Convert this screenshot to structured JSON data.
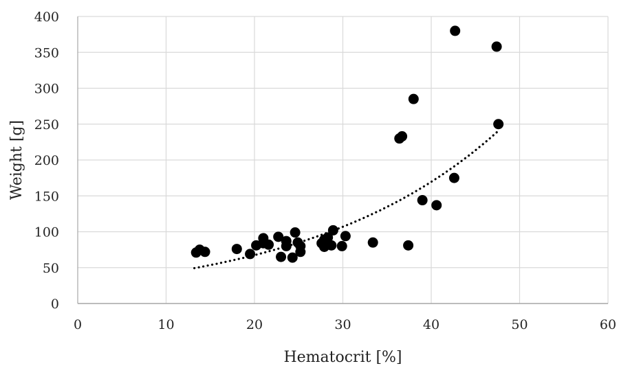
{
  "chart_data": {
    "type": "scatter",
    "title": "",
    "xlabel": "Hematocrit [%]",
    "ylabel": "Weight [g]",
    "xlim": [
      0,
      60
    ],
    "ylim": [
      0,
      400
    ],
    "x_ticks": [
      0,
      10,
      20,
      30,
      40,
      50,
      60
    ],
    "y_ticks": [
      0,
      50,
      100,
      150,
      200,
      250,
      300,
      350,
      400
    ],
    "grid": true,
    "legend": "none",
    "series": [
      {
        "color": "#000000",
        "marker": "filled-circle",
        "points": [
          {
            "x": 13.4,
            "y": 71
          },
          {
            "x": 13.8,
            "y": 75
          },
          {
            "x": 14.4,
            "y": 72
          },
          {
            "x": 18.0,
            "y": 76
          },
          {
            "x": 19.5,
            "y": 69
          },
          {
            "x": 20.2,
            "y": 81
          },
          {
            "x": 21.0,
            "y": 91
          },
          {
            "x": 21.0,
            "y": 84
          },
          {
            "x": 21.6,
            "y": 82
          },
          {
            "x": 22.7,
            "y": 93
          },
          {
            "x": 23.0,
            "y": 65
          },
          {
            "x": 23.6,
            "y": 80
          },
          {
            "x": 23.6,
            "y": 87
          },
          {
            "x": 24.3,
            "y": 64
          },
          {
            "x": 24.6,
            "y": 99
          },
          {
            "x": 24.9,
            "y": 85
          },
          {
            "x": 25.2,
            "y": 80
          },
          {
            "x": 25.2,
            "y": 72
          },
          {
            "x": 27.6,
            "y": 84
          },
          {
            "x": 27.9,
            "y": 89
          },
          {
            "x": 27.9,
            "y": 79
          },
          {
            "x": 28.3,
            "y": 92
          },
          {
            "x": 28.7,
            "y": 81
          },
          {
            "x": 28.9,
            "y": 102
          },
          {
            "x": 29.9,
            "y": 80
          },
          {
            "x": 30.3,
            "y": 94
          },
          {
            "x": 33.4,
            "y": 85
          },
          {
            "x": 36.4,
            "y": 230
          },
          {
            "x": 36.7,
            "y": 233
          },
          {
            "x": 37.4,
            "y": 81
          },
          {
            "x": 38.0,
            "y": 285
          },
          {
            "x": 39.0,
            "y": 144
          },
          {
            "x": 40.6,
            "y": 137
          },
          {
            "x": 42.6,
            "y": 175
          },
          {
            "x": 42.7,
            "y": 380
          },
          {
            "x": 47.4,
            "y": 358
          },
          {
            "x": 47.6,
            "y": 250
          }
        ]
      }
    ],
    "trendline": {
      "type": "exponential",
      "style": "dotted",
      "color": "#000000",
      "x_range": [
        13.2,
        47.6
      ],
      "a": 26.82,
      "b": 0.0461
    }
  }
}
